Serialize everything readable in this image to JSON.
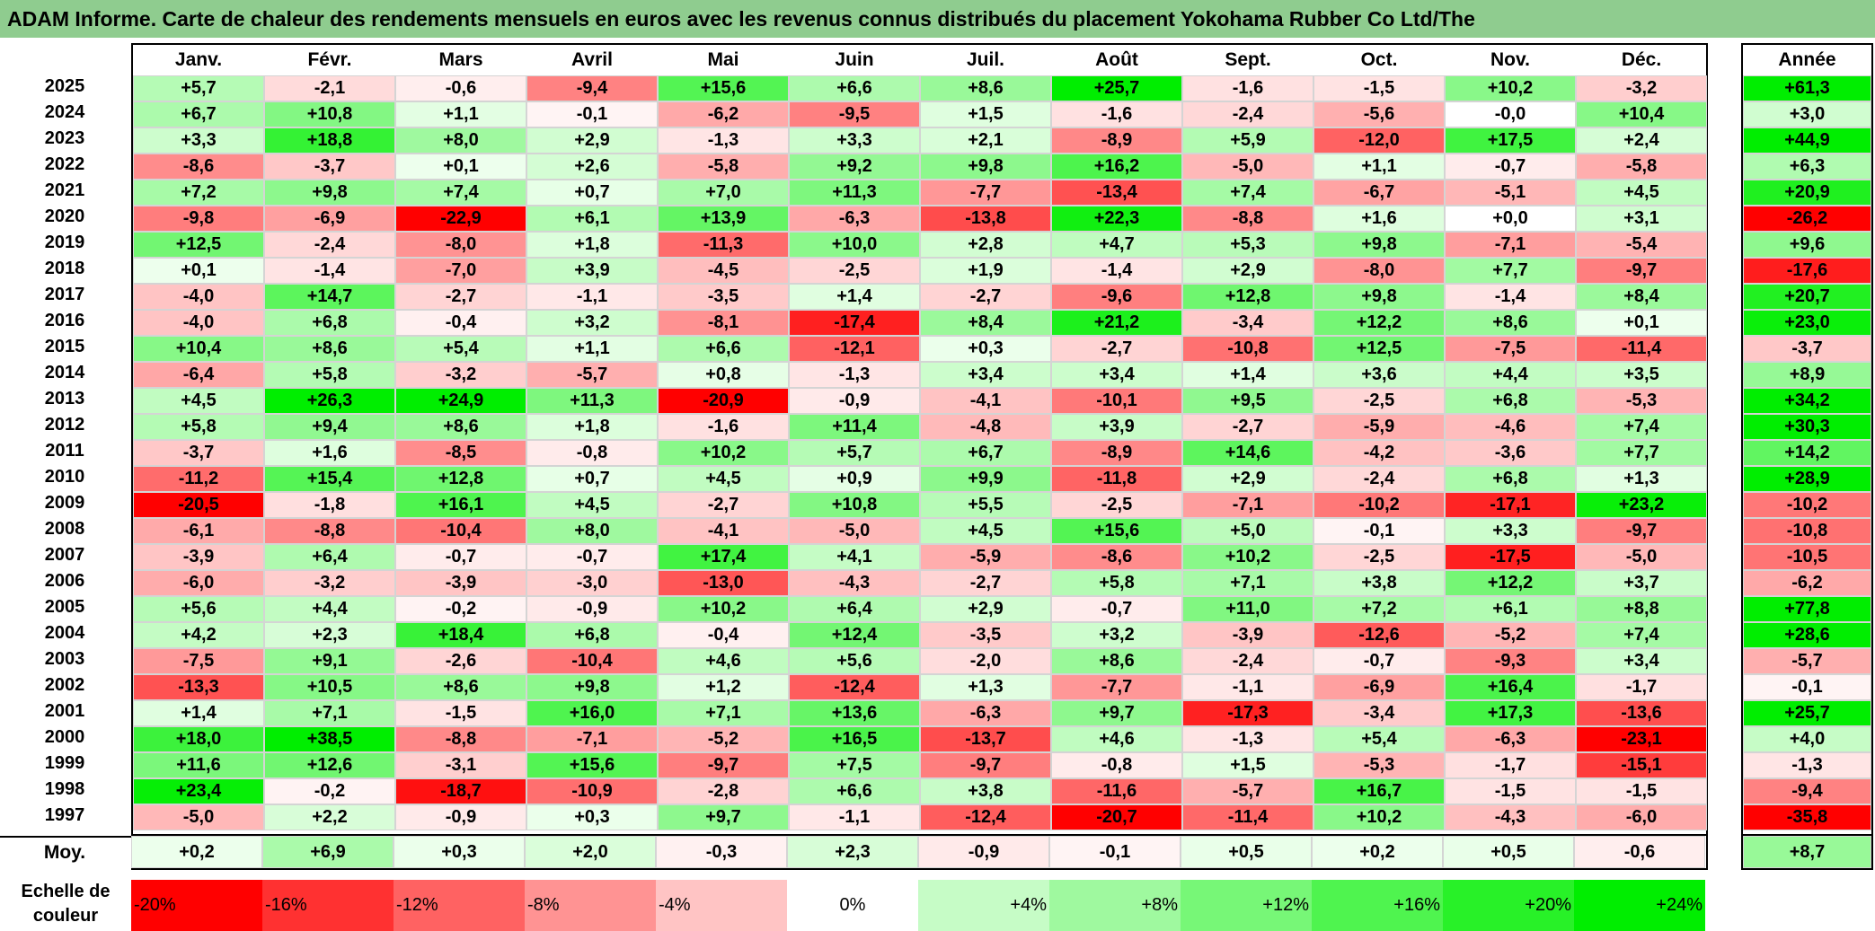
{
  "title": "ADAM Informe. Carte de chaleur des rendements mensuels en euros avec les revenus connus distribués du placement Yokohama Rubber Co Ltd/The",
  "colors": {
    "neg_max": "#ff0000",
    "pos_max": "#00ee00",
    "zero": "#ffffff",
    "title_bg": "#8fcc8f"
  },
  "chart_data": {
    "type": "heatmap",
    "months": [
      "Janv.",
      "Févr.",
      "Mars",
      "Avril",
      "Mai",
      "Juin",
      "Juil.",
      "Août",
      "Sept.",
      "Oct.",
      "Nov.",
      "Déc."
    ],
    "year_header": "Année",
    "rows": [
      {
        "year": "2025",
        "values": [
          "+5,7",
          "-2,1",
          "-0,6",
          "-9,4",
          "+15,6",
          "+6,6",
          "+8,6",
          "+25,7",
          "-1,6",
          "-1,5",
          "+10,2",
          "-3,2"
        ],
        "annual": "+61,3"
      },
      {
        "year": "2024",
        "values": [
          "+6,7",
          "+10,8",
          "+1,1",
          "-0,1",
          "-6,2",
          "-9,5",
          "+1,5",
          "-1,6",
          "-2,4",
          "-5,6",
          "-0,0",
          "+10,4"
        ],
        "annual": "+3,0"
      },
      {
        "year": "2023",
        "values": [
          "+3,3",
          "+18,8",
          "+8,0",
          "+2,9",
          "-1,3",
          "+3,3",
          "+2,1",
          "-8,9",
          "+5,9",
          "-12,0",
          "+17,5",
          "+2,4"
        ],
        "annual": "+44,9"
      },
      {
        "year": "2022",
        "values": [
          "-8,6",
          "-3,7",
          "+0,1",
          "+2,6",
          "-5,8",
          "+9,2",
          "+9,8",
          "+16,2",
          "-5,0",
          "+1,1",
          "-0,7",
          "-5,8"
        ],
        "annual": "+6,3"
      },
      {
        "year": "2021",
        "values": [
          "+7,2",
          "+9,8",
          "+7,4",
          "+0,7",
          "+7,0",
          "+11,3",
          "-7,7",
          "-13,4",
          "+7,4",
          "-6,7",
          "-5,1",
          "+4,5"
        ],
        "annual": "+20,9"
      },
      {
        "year": "2020",
        "values": [
          "-9,8",
          "-6,9",
          "-22,9",
          "+6,1",
          "+13,9",
          "-6,3",
          "-13,8",
          "+22,3",
          "-8,8",
          "+1,6",
          "+0,0",
          "+3,1"
        ],
        "annual": "-26,2"
      },
      {
        "year": "2019",
        "values": [
          "+12,5",
          "-2,4",
          "-8,0",
          "+1,8",
          "-11,3",
          "+10,0",
          "+2,8",
          "+4,7",
          "+5,3",
          "+9,8",
          "-7,1",
          "-5,4"
        ],
        "annual": "+9,6"
      },
      {
        "year": "2018",
        "values": [
          "+0,1",
          "-1,4",
          "-7,0",
          "+3,9",
          "-4,5",
          "-2,5",
          "+1,9",
          "-1,4",
          "+2,9",
          "-8,0",
          "+7,7",
          "-9,7"
        ],
        "annual": "-17,6"
      },
      {
        "year": "2017",
        "values": [
          "-4,0",
          "+14,7",
          "-2,7",
          "-1,1",
          "-3,5",
          "+1,4",
          "-2,7",
          "-9,6",
          "+12,8",
          "+9,8",
          "-1,4",
          "+8,4"
        ],
        "annual": "+20,7"
      },
      {
        "year": "2016",
        "values": [
          "-4,0",
          "+6,8",
          "-0,4",
          "+3,2",
          "-8,1",
          "-17,4",
          "+8,4",
          "+21,2",
          "-3,4",
          "+12,2",
          "+8,6",
          "+0,1"
        ],
        "annual": "+23,0"
      },
      {
        "year": "2015",
        "values": [
          "+10,4",
          "+8,6",
          "+5,4",
          "+1,1",
          "+6,6",
          "-12,1",
          "+0,3",
          "-2,7",
          "-10,8",
          "+12,5",
          "-7,5",
          "-11,4"
        ],
        "annual": "-3,7"
      },
      {
        "year": "2014",
        "values": [
          "-6,4",
          "+5,8",
          "-3,2",
          "-5,7",
          "+0,8",
          "-1,3",
          "+3,4",
          "+3,4",
          "+1,4",
          "+3,6",
          "+4,4",
          "+3,5"
        ],
        "annual": "+8,9"
      },
      {
        "year": "2013",
        "values": [
          "+4,5",
          "+26,3",
          "+24,9",
          "+11,3",
          "-20,9",
          "-0,9",
          "-4,1",
          "-10,1",
          "+9,5",
          "-2,5",
          "+6,8",
          "-5,3"
        ],
        "annual": "+34,2"
      },
      {
        "year": "2012",
        "values": [
          "+5,8",
          "+9,4",
          "+8,6",
          "+1,8",
          "-1,6",
          "+11,4",
          "-4,8",
          "+3,9",
          "-2,7",
          "-5,9",
          "-4,6",
          "+7,4"
        ],
        "annual": "+30,3"
      },
      {
        "year": "2011",
        "values": [
          "-3,7",
          "+1,6",
          "-8,5",
          "-0,8",
          "+10,2",
          "+5,7",
          "+6,7",
          "-8,9",
          "+14,6",
          "-4,2",
          "-3,6",
          "+7,7"
        ],
        "annual": "+14,2"
      },
      {
        "year": "2010",
        "values": [
          "-11,2",
          "+15,4",
          "+12,8",
          "+0,7",
          "+4,5",
          "+0,9",
          "+9,9",
          "-11,8",
          "+2,9",
          "-2,4",
          "+6,8",
          "+1,3"
        ],
        "annual": "+28,9"
      },
      {
        "year": "2009",
        "values": [
          "-20,5",
          "-1,8",
          "+16,1",
          "+4,5",
          "-2,7",
          "+10,8",
          "+5,5",
          "-2,5",
          "-7,1",
          "-10,2",
          "-17,1",
          "+23,2"
        ],
        "annual": "-10,2"
      },
      {
        "year": "2008",
        "values": [
          "-6,1",
          "-8,8",
          "-10,4",
          "+8,0",
          "-4,1",
          "-5,0",
          "+4,5",
          "+15,6",
          "+5,0",
          "-0,1",
          "+3,3",
          "-9,7"
        ],
        "annual": "-10,8"
      },
      {
        "year": "2007",
        "values": [
          "-3,9",
          "+6,4",
          "-0,7",
          "-0,7",
          "+17,4",
          "+4,1",
          "-5,9",
          "-8,6",
          "+10,2",
          "-2,5",
          "-17,5",
          "-5,0"
        ],
        "annual": "-10,5"
      },
      {
        "year": "2006",
        "values": [
          "-6,0",
          "-3,2",
          "-3,9",
          "-3,0",
          "-13,0",
          "-4,3",
          "-2,7",
          "+5,8",
          "+7,1",
          "+3,8",
          "+12,2",
          "+3,7"
        ],
        "annual": "-6,2"
      },
      {
        "year": "2005",
        "values": [
          "+5,6",
          "+4,4",
          "-0,2",
          "-0,9",
          "+10,2",
          "+6,4",
          "+2,9",
          "-0,7",
          "+11,0",
          "+7,2",
          "+6,1",
          "+8,8"
        ],
        "annual": "+77,8"
      },
      {
        "year": "2004",
        "values": [
          "+4,2",
          "+2,3",
          "+18,4",
          "+6,8",
          "-0,4",
          "+12,4",
          "-3,5",
          "+3,2",
          "-3,9",
          "-12,6",
          "-5,2",
          "+7,4"
        ],
        "annual": "+28,6"
      },
      {
        "year": "2003",
        "values": [
          "-7,5",
          "+9,1",
          "-2,6",
          "-10,4",
          "+4,6",
          "+5,6",
          "-2,0",
          "+8,6",
          "-2,4",
          "-0,7",
          "-9,3",
          "+3,4"
        ],
        "annual": "-5,7"
      },
      {
        "year": "2002",
        "values": [
          "-13,3",
          "+10,5",
          "+8,6",
          "+9,8",
          "+1,2",
          "-12,4",
          "+1,3",
          "-7,7",
          "-1,1",
          "-6,9",
          "+16,4",
          "-1,7"
        ],
        "annual": "-0,1"
      },
      {
        "year": "2001",
        "values": [
          "+1,4",
          "+7,1",
          "-1,5",
          "+16,0",
          "+7,1",
          "+13,6",
          "-6,3",
          "+9,7",
          "-17,3",
          "-3,4",
          "+17,3",
          "-13,6"
        ],
        "annual": "+25,7"
      },
      {
        "year": "2000",
        "values": [
          "+18,0",
          "+38,5",
          "-8,8",
          "-7,1",
          "-5,2",
          "+16,5",
          "-13,7",
          "+4,6",
          "-1,3",
          "+5,4",
          "-6,3",
          "-23,1"
        ],
        "annual": "+4,0"
      },
      {
        "year": "1999",
        "values": [
          "+11,6",
          "+12,6",
          "-3,1",
          "+15,6",
          "-9,7",
          "+7,5",
          "-9,7",
          "-0,8",
          "+1,5",
          "-5,3",
          "-1,7",
          "-15,1"
        ],
        "annual": "-1,3"
      },
      {
        "year": "1998",
        "values": [
          "+23,4",
          "-0,2",
          "-18,7",
          "-10,9",
          "-2,8",
          "+6,6",
          "+3,8",
          "-11,6",
          "-5,7",
          "+16,7",
          "-1,5",
          "-1,5"
        ],
        "annual": "-9,4"
      },
      {
        "year": "1997",
        "values": [
          "-5,0",
          "+2,2",
          "-0,9",
          "+0,3",
          "+9,7",
          "-1,1",
          "-12,4",
          "-20,7",
          "-11,4",
          "+10,2",
          "-4,3",
          "-6,0"
        ],
        "annual": "-35,8"
      }
    ],
    "average": {
      "label": "Moy.",
      "values": [
        "+0,2",
        "+6,9",
        "+0,3",
        "+2,0",
        "-0,3",
        "+2,3",
        "-0,9",
        "-0,1",
        "+0,5",
        "+0,2",
        "+0,5",
        "-0,6"
      ],
      "annual": "+8,7"
    },
    "legend": {
      "label": "Echelle de couleur",
      "steps": [
        "-20%",
        "-16%",
        "-12%",
        "-8%",
        "-4%",
        "0%",
        "+4%",
        "+8%",
        "+12%",
        "+16%",
        "+20%",
        "+24%"
      ]
    }
  }
}
